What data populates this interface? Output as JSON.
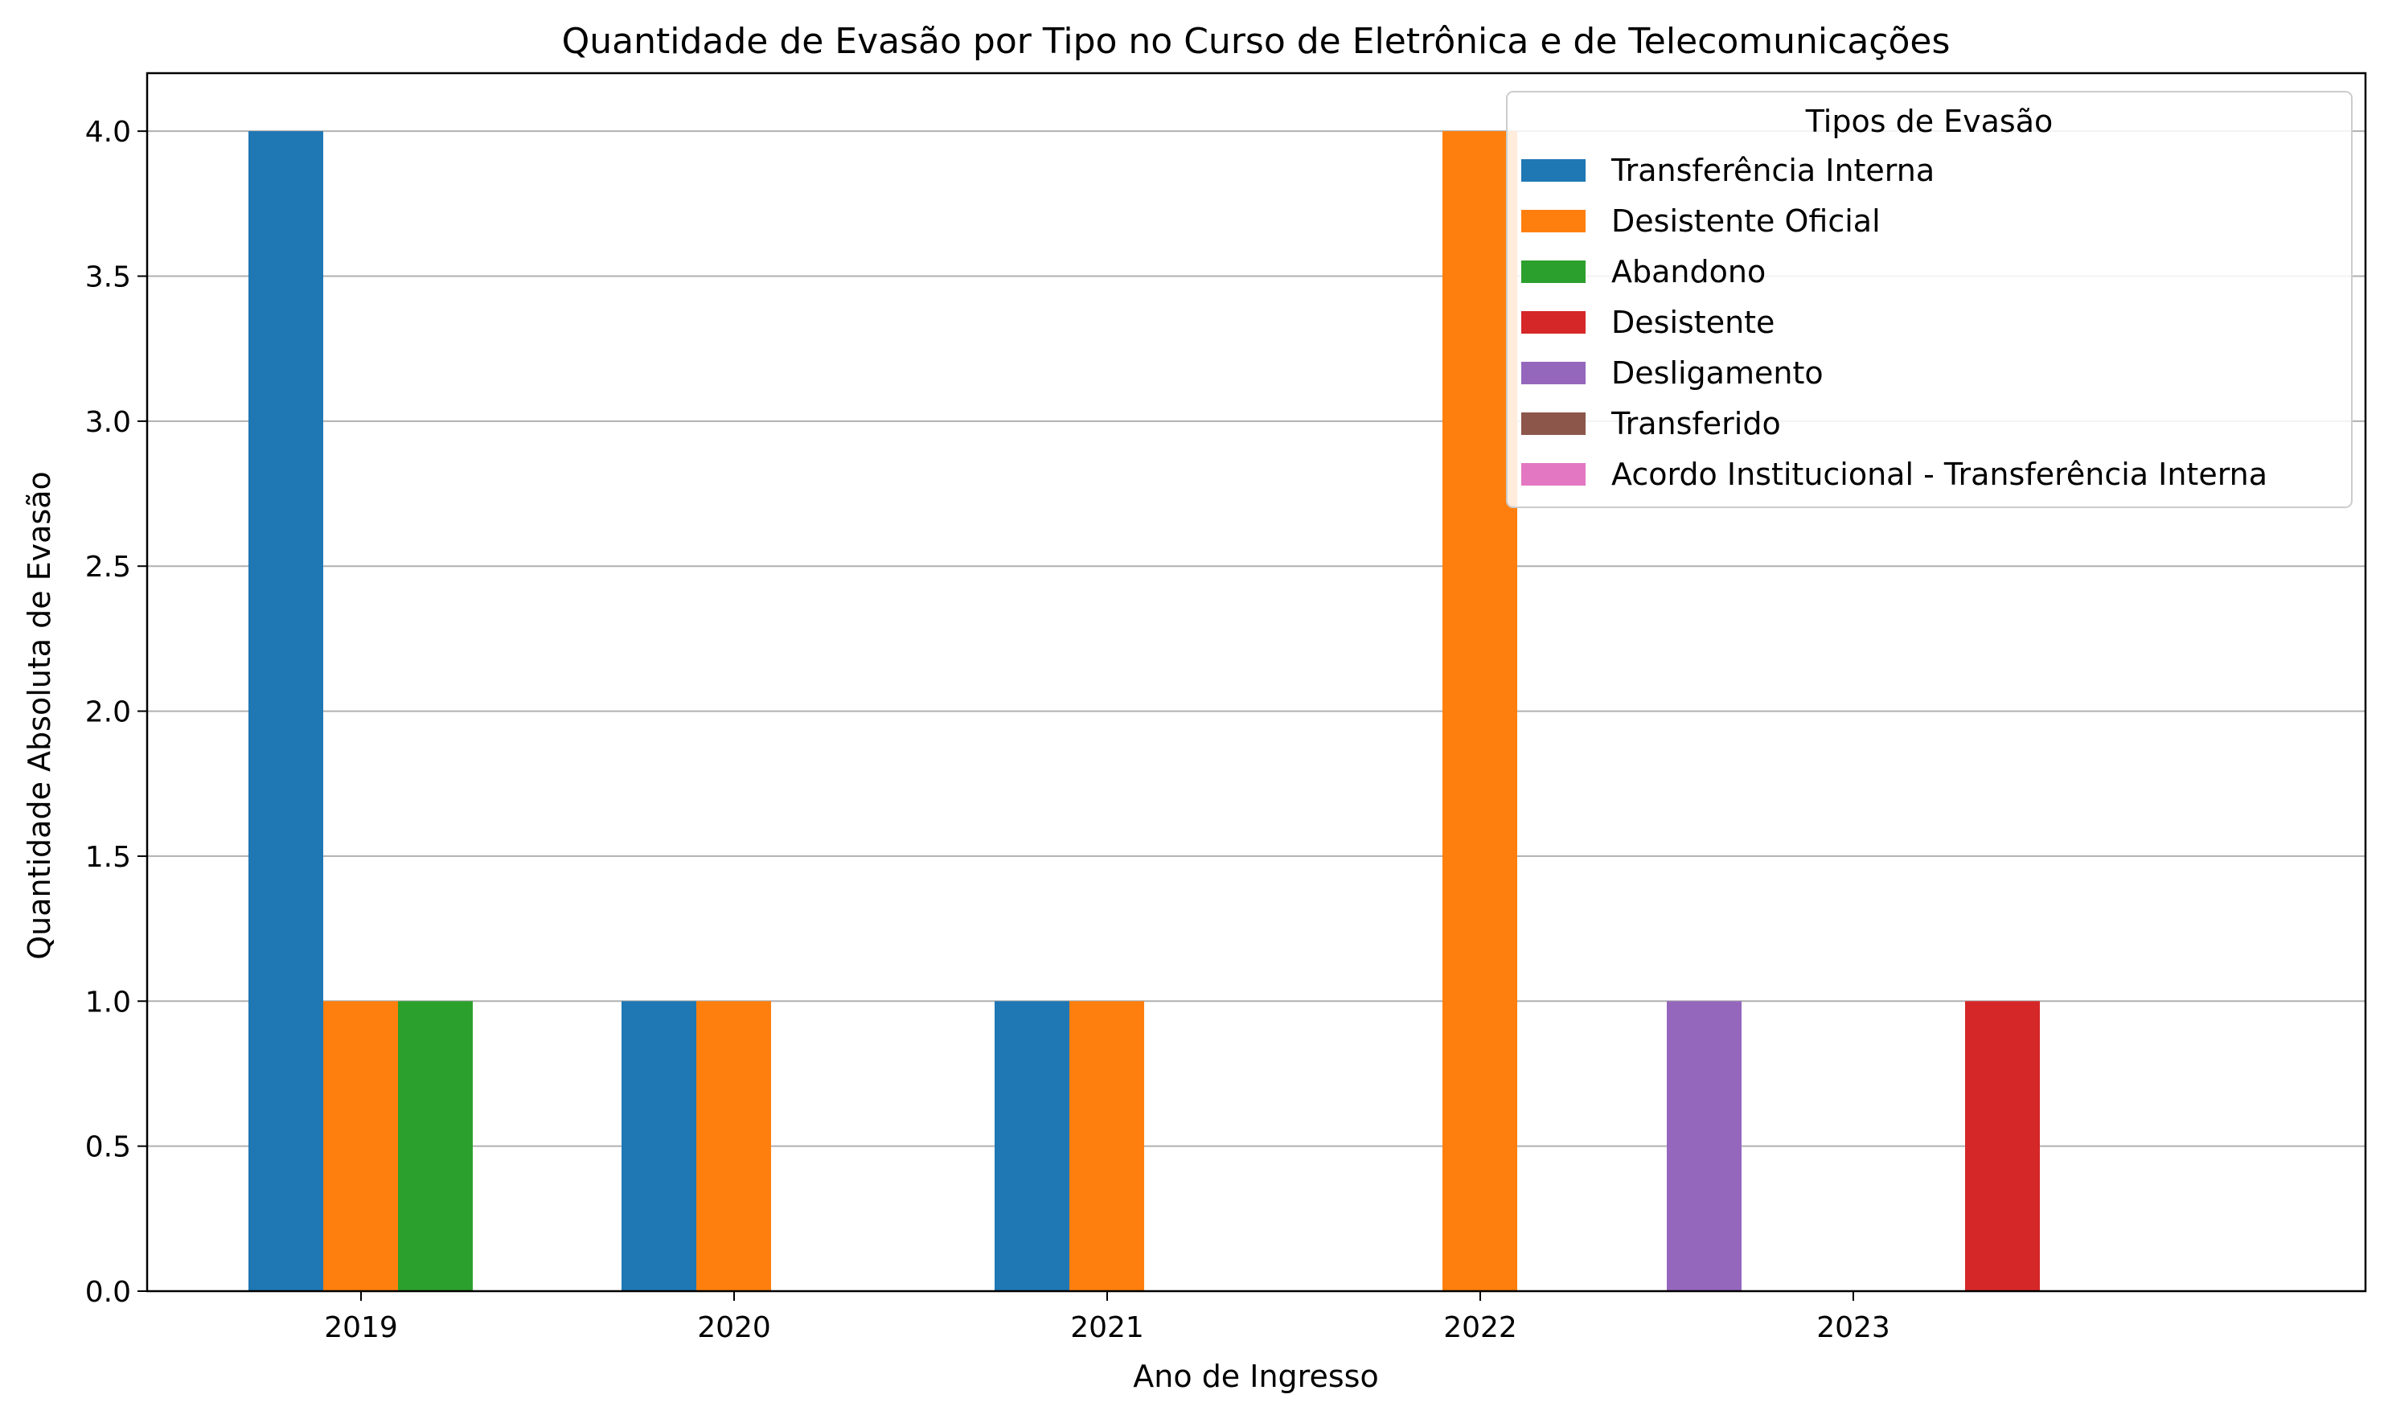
{
  "chart_data": {
    "type": "bar",
    "title": "Quantidade de Evasão por Tipo no Curso de Eletrônica e de Telecomunicações",
    "xlabel": "Ano de Ingresso",
    "ylabel": "Quantidade Absoluta de Evasão",
    "ylim": [
      0,
      4.2
    ],
    "yticks": [
      "0.0",
      "0.5",
      "1.0",
      "1.5",
      "2.0",
      "2.5",
      "3.0",
      "3.5",
      "4.0"
    ],
    "ytick_values": [
      0,
      0.5,
      1,
      1.5,
      2,
      2.5,
      3,
      3.5,
      4
    ],
    "x_tick_labels": [
      "2019",
      "2020",
      "2021",
      "2022",
      "2023"
    ],
    "grid": "horizontal",
    "legend": {
      "title": "Tipos de Evasão",
      "placement": "top-right"
    },
    "series": [
      {
        "name": "Transferência Interna",
        "color": "#1f77b4",
        "values": [
          4,
          1,
          1,
          0,
          0
        ]
      },
      {
        "name": "Desistente Oficial",
        "color": "#ff7f0e",
        "values": [
          1,
          1,
          1,
          4,
          0
        ]
      },
      {
        "name": "Abandono",
        "color": "#2ca02c",
        "values": [
          1,
          0,
          0,
          0,
          0
        ]
      },
      {
        "name": "Desistente",
        "color": "#d62728",
        "values": [
          0,
          0,
          0,
          0,
          1
        ]
      },
      {
        "name": "Desligamento",
        "color": "#9467bd",
        "values": [
          0,
          0,
          0,
          1,
          0
        ]
      },
      {
        "name": "Transferido",
        "color": "#8c564b",
        "values": [
          0,
          0,
          0,
          0,
          0
        ]
      },
      {
        "name": "Acordo Institucional - Transferência Interna",
        "color": "#e377c2",
        "values": [
          0,
          0,
          0,
          0,
          0
        ]
      }
    ]
  }
}
